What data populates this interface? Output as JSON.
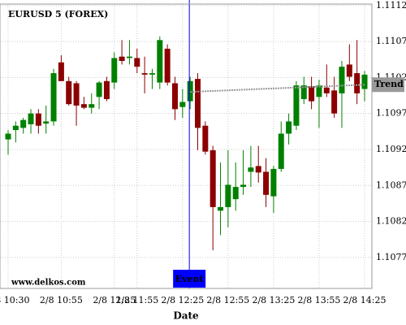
{
  "chart_data": {
    "type": "candlestick",
    "title": "EURUSD 5 (FOREX)",
    "x_label": "Date",
    "footer": "www.delkos.com",
    "categories": [
      "2/8 10:30",
      null,
      null,
      null,
      null,
      null,
      null,
      "2/8 10:55",
      null,
      null,
      null,
      null,
      null,
      null,
      "2/8 11:25",
      null,
      null,
      "2/8 11:55",
      null,
      null,
      null,
      null,
      null,
      "2/8 12:25",
      null,
      null,
      null,
      null,
      null,
      "2/8 12:55",
      null,
      null,
      null,
      null,
      null,
      "2/8 13:25",
      null,
      null,
      null,
      null,
      null,
      "2/8 13:55",
      null,
      null,
      null,
      null,
      null,
      "2/8 14:25"
    ],
    "open": [
      1.10934,
      1.10947,
      1.1095,
      1.10955,
      1.1097,
      1.10956,
      1.10959,
      1.11041,
      1.11015,
      1.11012,
      1.10983,
      1.10978,
      1.10993,
      1.11015,
      1.11013,
      1.11049,
      1.11047,
      1.11047,
      1.11026,
      1.11024,
      1.11013,
      1.1106,
      1.11012,
      1.10979,
      1.10987,
      1.11018,
      1.10953,
      1.10919,
      1.10835,
      1.1084,
      1.10851,
      1.10868,
      1.10889,
      1.10897,
      1.10889,
      1.10855,
      1.10893,
      1.10942,
      1.10953,
      1.1099,
      1.11008,
      1.10993,
      1.11006,
      1.11002,
      1.10998,
      1.11038,
      1.11026,
      1.11004
    ],
    "high": [
      1.10947,
      1.10959,
      1.10964,
      1.10976,
      1.10976,
      1.10981,
      1.11032,
      1.11051,
      1.11021,
      1.11015,
      1.10993,
      1.10998,
      1.11015,
      1.11021,
      1.11055,
      1.11072,
      1.11072,
      1.1106,
      1.11049,
      1.11032,
      1.11077,
      1.11066,
      1.11021,
      1.11004,
      1.11021,
      1.11026,
      1.10959,
      1.10925,
      1.10902,
      1.10919,
      1.10902,
      1.10919,
      1.10925,
      1.10925,
      1.10908,
      1.10897,
      1.10959,
      1.1097,
      1.11015,
      1.11021,
      1.11021,
      1.11017,
      1.11038,
      1.11021,
      1.11043,
      1.11066,
      1.11072,
      1.11029
    ],
    "low": [
      1.10913,
      1.1093,
      1.10942,
      1.10942,
      1.10942,
      1.10942,
      1.10953,
      1.11015,
      1.10981,
      1.10953,
      1.10976,
      1.1097,
      1.10976,
      1.10987,
      1.11004,
      1.11038,
      1.11038,
      1.11026,
      1.10998,
      1.11004,
      1.11004,
      1.11009,
      1.10961,
      1.10964,
      1.10976,
      1.10919,
      1.10913,
      1.1078,
      1.10801,
      1.10812,
      1.10835,
      1.10857,
      1.10868,
      1.10874,
      1.1084,
      1.10832,
      1.10889,
      1.10927,
      1.10947,
      1.10983,
      1.10976,
      1.1095,
      1.10993,
      1.10964,
      1.1095,
      1.11015,
      1.10983,
      1.10987
    ],
    "close": [
      1.10942,
      1.10953,
      1.10961,
      1.1097,
      1.10953,
      1.10959,
      1.11026,
      1.11015,
      1.10983,
      1.10981,
      1.10978,
      1.10983,
      1.11013,
      1.1099,
      1.11047,
      1.11043,
      1.11049,
      1.11035,
      1.11024,
      1.11026,
      1.11072,
      1.11013,
      1.10976,
      1.10986,
      1.11015,
      1.1095,
      1.10917,
      1.1084,
      1.1084,
      1.10871,
      1.10868,
      1.10871,
      1.10895,
      1.10888,
      1.10857,
      1.10893,
      1.10942,
      1.10959,
      1.11009,
      1.11009,
      1.10987,
      1.11009,
      1.10998,
      1.1097,
      1.11035,
      1.11021,
      1.10998,
      1.11024
    ],
    "up_color": "#008000",
    "down_color": "#8b0000",
    "ylim": [
      1.10727,
      1.11122
    ],
    "yticks": [
      1.1077,
      1.1082,
      1.1087,
      1.1092,
      1.1097,
      1.1102,
      1.1107,
      1.1112
    ],
    "grid": true,
    "event": {
      "label": "Event",
      "index": 24,
      "color": "#0000ff"
    },
    "trend": {
      "label": "Trend",
      "start_index": 24,
      "end_index": 47,
      "start": 1.11,
      "end": 1.1101,
      "color": "#999999"
    }
  }
}
